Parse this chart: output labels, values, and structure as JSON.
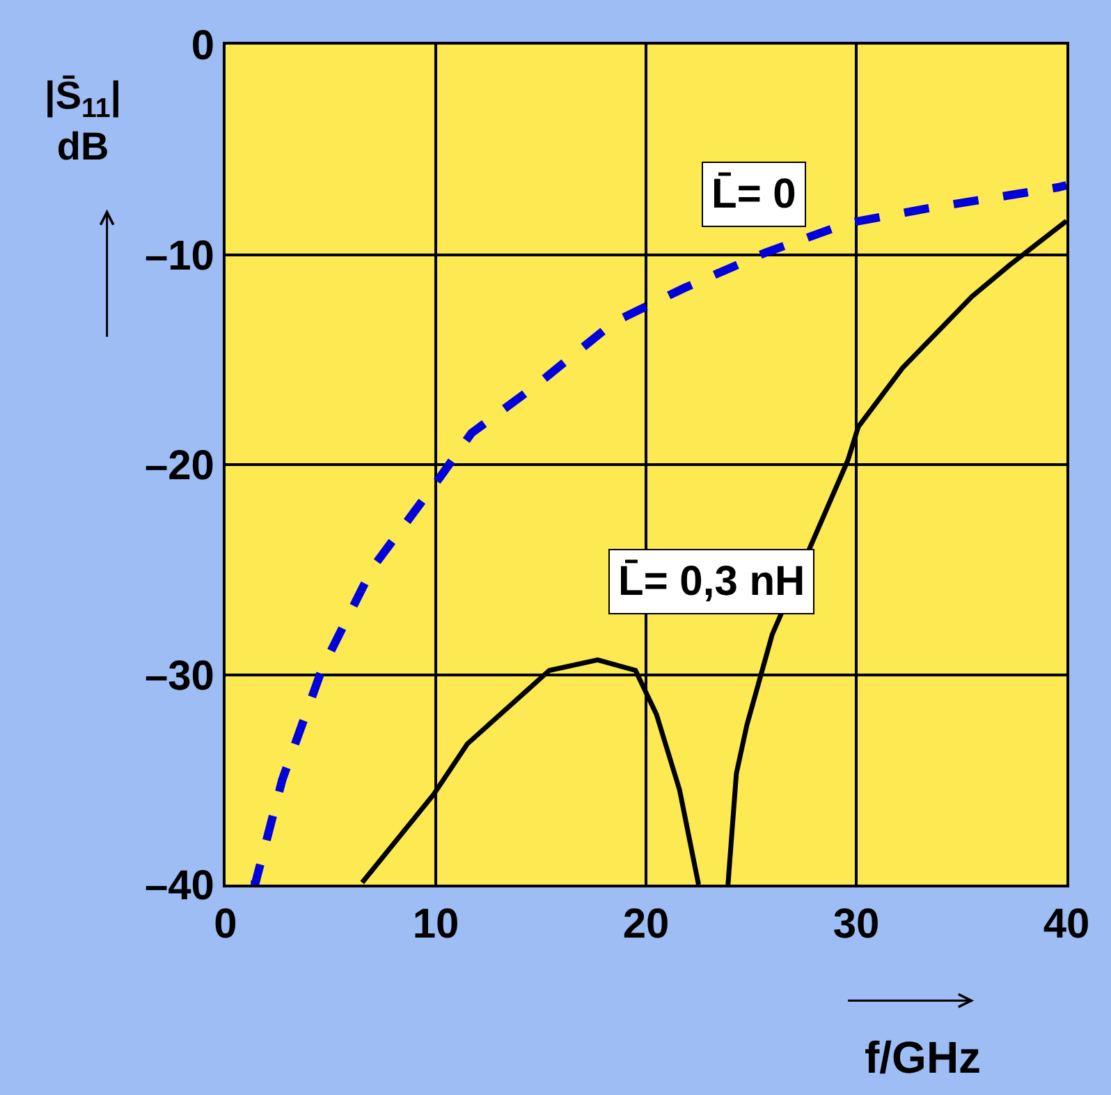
{
  "chart_data": {
    "type": "line",
    "xlabel": "f/GHz",
    "ylabel": "|S̄$_{11}$|\ndB",
    "xlim": [
      0,
      40
    ],
    "xticks": [
      0,
      10,
      20,
      30,
      40
    ],
    "ylim": [
      -40,
      0
    ],
    "yticks": [
      0,
      {
        "value": -10,
        "label": "–10"
      },
      {
        "value": -20,
        "label": "–20"
      },
      {
        "value": -30,
        "label": "–30"
      },
      {
        "value": -40,
        "label": "–40"
      }
    ],
    "grid": true,
    "legend": false,
    "series": [
      {
        "name": "L̄= 0",
        "color": "#0000dd",
        "line_style": "dashed",
        "x": [
          1.2,
          1.4,
          2.7,
          4.6,
          7.0,
          10.2,
          11.7,
          14.8,
          18.5,
          21.8,
          25.7,
          29.6,
          33.4,
          39.6,
          40
        ],
        "values": [
          -40,
          -40,
          -35,
          -29.7,
          -24.9,
          -20.6,
          -18.5,
          -16.2,
          -13.2,
          -11.6,
          -9.9,
          -8.5,
          -7.8,
          -6.8,
          -6.7
        ]
      },
      {
        "name": "L̄= 0,3 nH",
        "color": "#000000",
        "line_style": "solid",
        "x": [
          6.5,
          9.9,
          11.5,
          15.4,
          17.7,
          19.5,
          20.5,
          21.6,
          22.5,
          23.0,
          23.9,
          24.3,
          24.8,
          26.0,
          29.6,
          30.1,
          32.2,
          35.5,
          37.3,
          40
        ],
        "values": [
          -39.9,
          -35.7,
          -33.3,
          -29.8,
          -29.3,
          -29.8,
          -31.9,
          -35.5,
          -40,
          null,
          -40,
          -34.7,
          -32.4,
          -28.1,
          -19.8,
          -18.2,
          -15.4,
          -12.0,
          -10.5,
          -8.4
        ]
      }
    ]
  }
}
